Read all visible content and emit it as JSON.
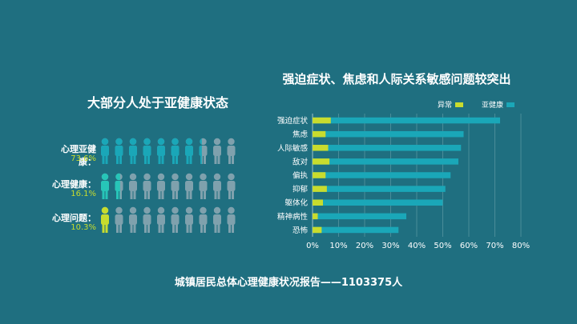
{
  "colors": {
    "background": "#1f6f80",
    "abnormal": "#c8dc2e",
    "subhealth": "#1aa7b8",
    "healthy": "#27c5b8",
    "neutral": "#7fa1ad",
    "grid": "#4a8c99"
  },
  "left_title": "大部分人处于亚健康状态",
  "pictogram": [
    {
      "label": "心理亚健康：",
      "pct": "73.6%",
      "value": 73.6,
      "color": "#1aa7b8",
      "icon": "person-icon"
    },
    {
      "label": "心理健康：",
      "pct": "16.1%",
      "value": 16.1,
      "color": "#27c5b8",
      "icon": "person-icon"
    },
    {
      "label": "心理问题：",
      "pct": "10.3%",
      "value": 10.3,
      "color": "#c8dc2e",
      "icon": "person-icon"
    }
  ],
  "chart_title": "强迫症状、焦虑和人际关系敏感问题较突出",
  "footer": "城镇居民总体心理健康状况报告——1103375人",
  "chart_data": {
    "type": "bar",
    "orientation": "horizontal",
    "categories": [
      "强迫症状",
      "焦虑",
      "人际敏感",
      "敌对",
      "偏执",
      "抑郁",
      "躯体化",
      "精神病性",
      "恐怖"
    ],
    "series": [
      {
        "name": "异常",
        "values": [
          7,
          5,
          6,
          6.5,
          5,
          5.5,
          4,
          2,
          3.5
        ]
      },
      {
        "name": "亚健康",
        "values": [
          72,
          58,
          57,
          56,
          53,
          51,
          50,
          36,
          33
        ]
      }
    ],
    "xlim": [
      0,
      80
    ],
    "xticks": [
      "0%",
      "10%",
      "20%",
      "30%",
      "40%",
      "50%",
      "60%",
      "70%",
      "80%"
    ],
    "grid": true,
    "legend_position": "top-right"
  }
}
